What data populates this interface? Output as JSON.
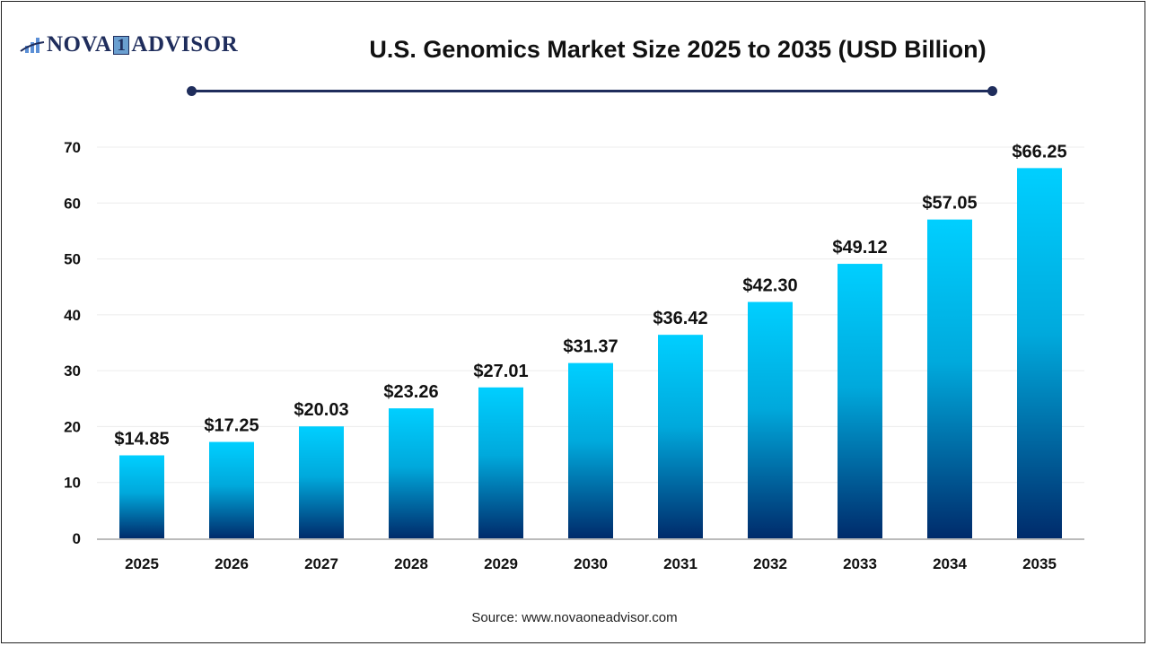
{
  "logo": {
    "text_left": "NOVA",
    "text_one": "1",
    "text_right": "ADVISOR"
  },
  "source": "Source: www.novaoneadvisor.com",
  "colors": {
    "bar_top": "#00cfff",
    "bar_bottom": "#002b6b",
    "accent": "#1f2d5c"
  },
  "chart_data": {
    "type": "bar",
    "title": "U.S. Genomics Market Size 2025 to 2035  (USD Billion)",
    "xlabel": "",
    "ylabel": "",
    "ylim": [
      0,
      70
    ],
    "yticks": [
      0,
      10,
      20,
      30,
      40,
      50,
      60,
      70
    ],
    "grid": true,
    "categories": [
      "2025",
      "2026",
      "2027",
      "2028",
      "2029",
      "2030",
      "2031",
      "2032",
      "2033",
      "2034",
      "2035"
    ],
    "values": [
      14.85,
      17.25,
      20.03,
      23.26,
      27.01,
      31.37,
      36.42,
      42.3,
      49.12,
      57.05,
      66.25
    ],
    "data_labels": [
      "$14.85",
      "$17.25",
      "$20.03",
      "$23.26",
      "$27.01",
      "$31.37",
      "$36.42",
      "$42.30",
      "$49.12",
      "$57.05",
      "$66.25"
    ]
  }
}
